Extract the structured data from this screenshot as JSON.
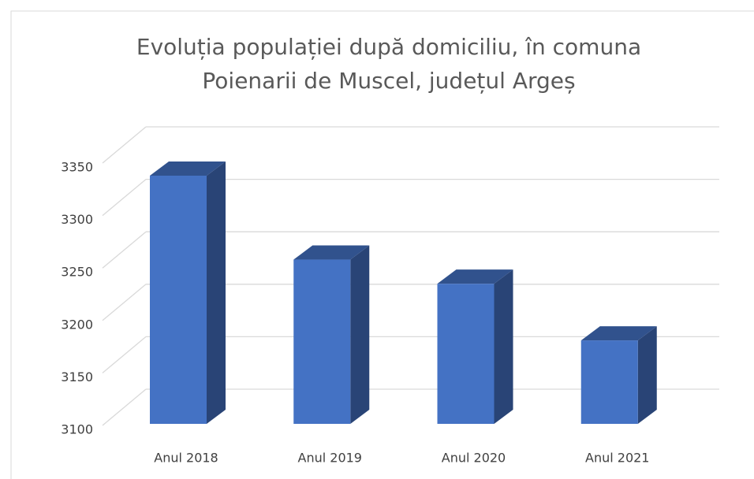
{
  "chart_data": {
    "type": "bar3d",
    "title": [
      "Evoluția populației după domiciliu, în comuna",
      "Poienarii de Muscel, județul Argeș"
    ],
    "categories": [
      "Anul 2018",
      "Anul 2019",
      "Anul 2020",
      "Anul 2021"
    ],
    "values": [
      3338,
      3258,
      3235,
      3181
    ],
    "color": "#4472c4",
    "ylim": [
      3100,
      3350
    ],
    "yticks": [
      3100,
      3150,
      3200,
      3250,
      3300,
      3350
    ],
    "grid": true
  }
}
